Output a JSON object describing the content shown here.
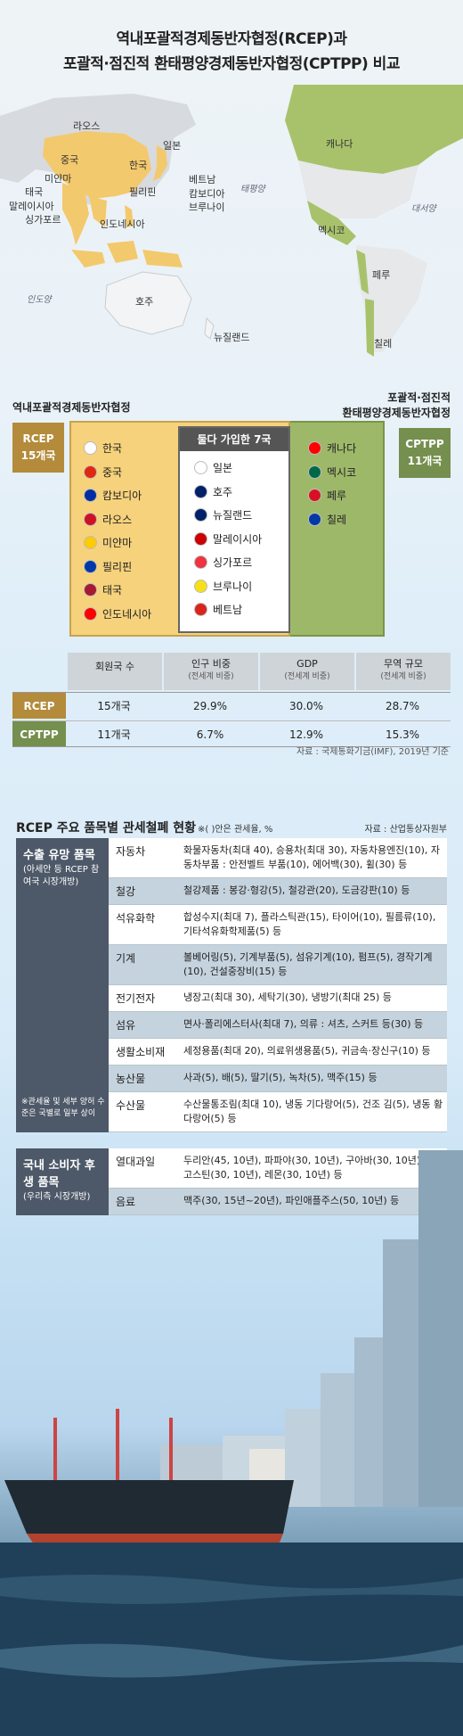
{
  "title": {
    "line1": "역내포괄적경제동반자협정(RCEP)과",
    "line2": "포괄적·점진적 환태평양경제동반자협정(CPTPP) 비교"
  },
  "map": {
    "labels": {
      "laos": "라오스",
      "china": "중국",
      "korea": "한국",
      "japan": "일본",
      "myanmar": "미얀마",
      "thailand": "태국",
      "malaysia": "말레이시아",
      "singapore": "싱가포르",
      "philippines": "필리핀",
      "vietnam": "베트남",
      "cambodia": "캄보디아",
      "brunei": "브루나이",
      "indonesia": "인도네시아",
      "australia": "호주",
      "newzealand": "뉴질랜드",
      "canada": "캐나다",
      "mexico": "멕시코",
      "peru": "페루",
      "chile": "칠레"
    },
    "oceans": {
      "pacific": "태평양",
      "atlantic": "대서양",
      "indian": "인도양"
    }
  },
  "agreements": {
    "rcep_title": "역내포괄적경제동반자협정",
    "cptpp_title_line1": "포괄적·점진적",
    "cptpp_title_line2": "환태평양경제동반자협정",
    "rcep_tag_line1": "RCEP",
    "rcep_tag_line2": "15개국",
    "cptpp_tag_line1": "CPTPP",
    "cptpp_tag_line2": "11개국",
    "both_title": "둘다 가입한 7국",
    "rcep_only": [
      "한국",
      "중국",
      "캄보디아",
      "라오스",
      "미얀마",
      "필리핀",
      "태국",
      "인도네시아"
    ],
    "both": [
      "일본",
      "호주",
      "뉴질랜드",
      "말레이시아",
      "싱가포르",
      "브루나이",
      "베트남"
    ],
    "cptpp_only": [
      "캐나다",
      "멕시코",
      "페루",
      "칠레"
    ]
  },
  "stats": {
    "headers": [
      {
        "main": "회원국 수",
        "sub": ""
      },
      {
        "main": "인구 비중",
        "sub": "(전세계 비중)"
      },
      {
        "main": "GDP",
        "sub": "(전세계 비중)"
      },
      {
        "main": "무역 규모",
        "sub": "(전세계 비중)"
      }
    ],
    "rows": [
      {
        "label": "RCEP",
        "color": "#b38b3b",
        "values": [
          "15개국",
          "29.9%",
          "30.0%",
          "28.7%"
        ]
      },
      {
        "label": "CPTPP",
        "color": "#758f4e",
        "values": [
          "11개국",
          "6.7%",
          "12.9%",
          "15.3%"
        ]
      }
    ],
    "source": "자료 : 국제통화기금(IMF), 2019년 기준"
  },
  "tariff": {
    "title": "RCEP 주요 품목별 관세철폐 현황",
    "note": "※( )안은 관세율, %",
    "source": "자료 : 산업통상자원부",
    "export_group": {
      "title": "수출 유망 품목",
      "sub": "(아세안 등 RCEP 참여국 시장개방)",
      "foot": "※관세율 및 세부 양허 수준은 국별로 일부 상이",
      "rows": [
        {
          "cat": "자동차",
          "items": "화물자동차(최대 40), 승용차(최대 30), 자동차용엔진(10), 자동차부품 : 안전벨트 부품(10), 에어백(30), 휠(30) 등"
        },
        {
          "cat": "철강",
          "items": "철강제품 : 봉강·형강(5), 철강관(20), 도금강판(10) 등"
        },
        {
          "cat": "석유화학",
          "items": "합성수지(최대 7), 플라스틱관(15), 타이어(10), 필름류(10), 기타석유화학제품(5) 등"
        },
        {
          "cat": "기계",
          "items": "볼베어링(5), 기계부품(5), 섬유기계(10), 펌프(5), 경작기계(10), 건설중장비(15) 등"
        },
        {
          "cat": "전기전자",
          "items": "냉장고(최대 30), 세탁기(30), 냉방기(최대 25) 등"
        },
        {
          "cat": "섬유",
          "items": "면사·폴리에스터사(최대 7), 의류 : 셔츠, 스커트 등(30) 등"
        },
        {
          "cat": "생활소비재",
          "items": "세정용품(최대 20), 의료위생용품(5), 귀금속·장신구(10) 등"
        },
        {
          "cat": "농산물",
          "items": "사과(5), 배(5), 딸기(5), 녹차(5), 맥주(15) 등"
        },
        {
          "cat": "수산물",
          "items": "수산물통조림(최대 10), 냉동 기다랑어(5), 건조 김(5), 냉동 황다랑어(5) 등"
        }
      ]
    },
    "domestic_group": {
      "title": "국내 소비자 후생 품목",
      "sub": "(우리측 시장개방)",
      "rows": [
        {
          "cat": "열대과일",
          "items": "두리안(45, 10년), 파파야(30, 10년), 구아바(30, 10년), 망고스틴(30, 10년), 레몬(30, 10년) 등"
        },
        {
          "cat": "음료",
          "items": "맥주(30, 15년~20년), 파인애플주스(50, 10년) 등"
        }
      ]
    }
  }
}
